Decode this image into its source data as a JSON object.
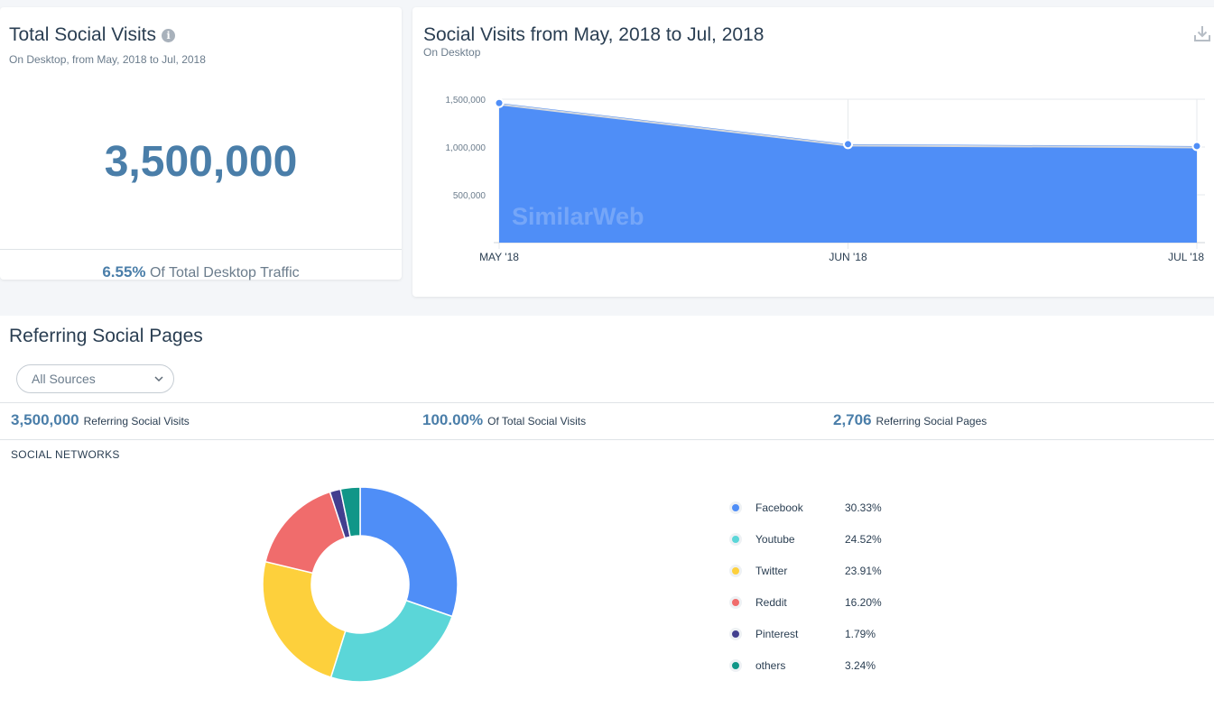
{
  "total_card": {
    "title": "Total Social Visits",
    "info_icon": "i",
    "subtitle": "On Desktop, from May, 2018 to Jul, 2018",
    "big_number": "3,500,000",
    "footer_pct": "6.55%",
    "footer_text": "Of Total Desktop Traffic"
  },
  "chart_card": {
    "title": "Social Visits from May, 2018 to Jul, 2018",
    "subtitle": "On Desktop",
    "watermark": "SimilarWeb"
  },
  "chart_data": [
    {
      "type": "area",
      "title": "Social Visits from May, 2018 to Jul, 2018",
      "categories": [
        "MAY '18",
        "JUN '18",
        "JUL '18"
      ],
      "values": [
        1460000,
        1030000,
        1010000
      ],
      "y_ticks": [
        "1,500,000",
        "1,000,000",
        "500,000"
      ],
      "y_tick_values": [
        1500000,
        1000000,
        500000
      ],
      "ylim": [
        0,
        1500000
      ],
      "color": "#4f8ef7"
    },
    {
      "type": "pie",
      "title": "SOCIAL NETWORKS",
      "labels": [
        "Facebook",
        "Youtube",
        "Twitter",
        "Reddit",
        "Pinterest",
        "others"
      ],
      "values": [
        30.33,
        24.52,
        23.91,
        16.2,
        1.79,
        3.24
      ],
      "display": [
        "30.33%",
        "24.52%",
        "23.91%",
        "16.20%",
        "1.79%",
        "3.24%"
      ],
      "colors": [
        "#4f8ef7",
        "#5bd6d8",
        "#fdd03c",
        "#f06c6c",
        "#423f8f",
        "#109688"
      ]
    }
  ],
  "referring": {
    "title": "Referring Social Pages",
    "select_value": "All Sources",
    "metrics": [
      {
        "num": "3,500,000",
        "label": "Referring Social Visits"
      },
      {
        "num": "100.00%",
        "label": "Of Total Social Visits"
      },
      {
        "num": "2,706",
        "label": "Referring Social Pages"
      }
    ],
    "networks_label": "SOCIAL NETWORKS"
  },
  "icons": {
    "info": "info-icon",
    "download": "download-icon",
    "chevron": "chevron-down-icon"
  }
}
